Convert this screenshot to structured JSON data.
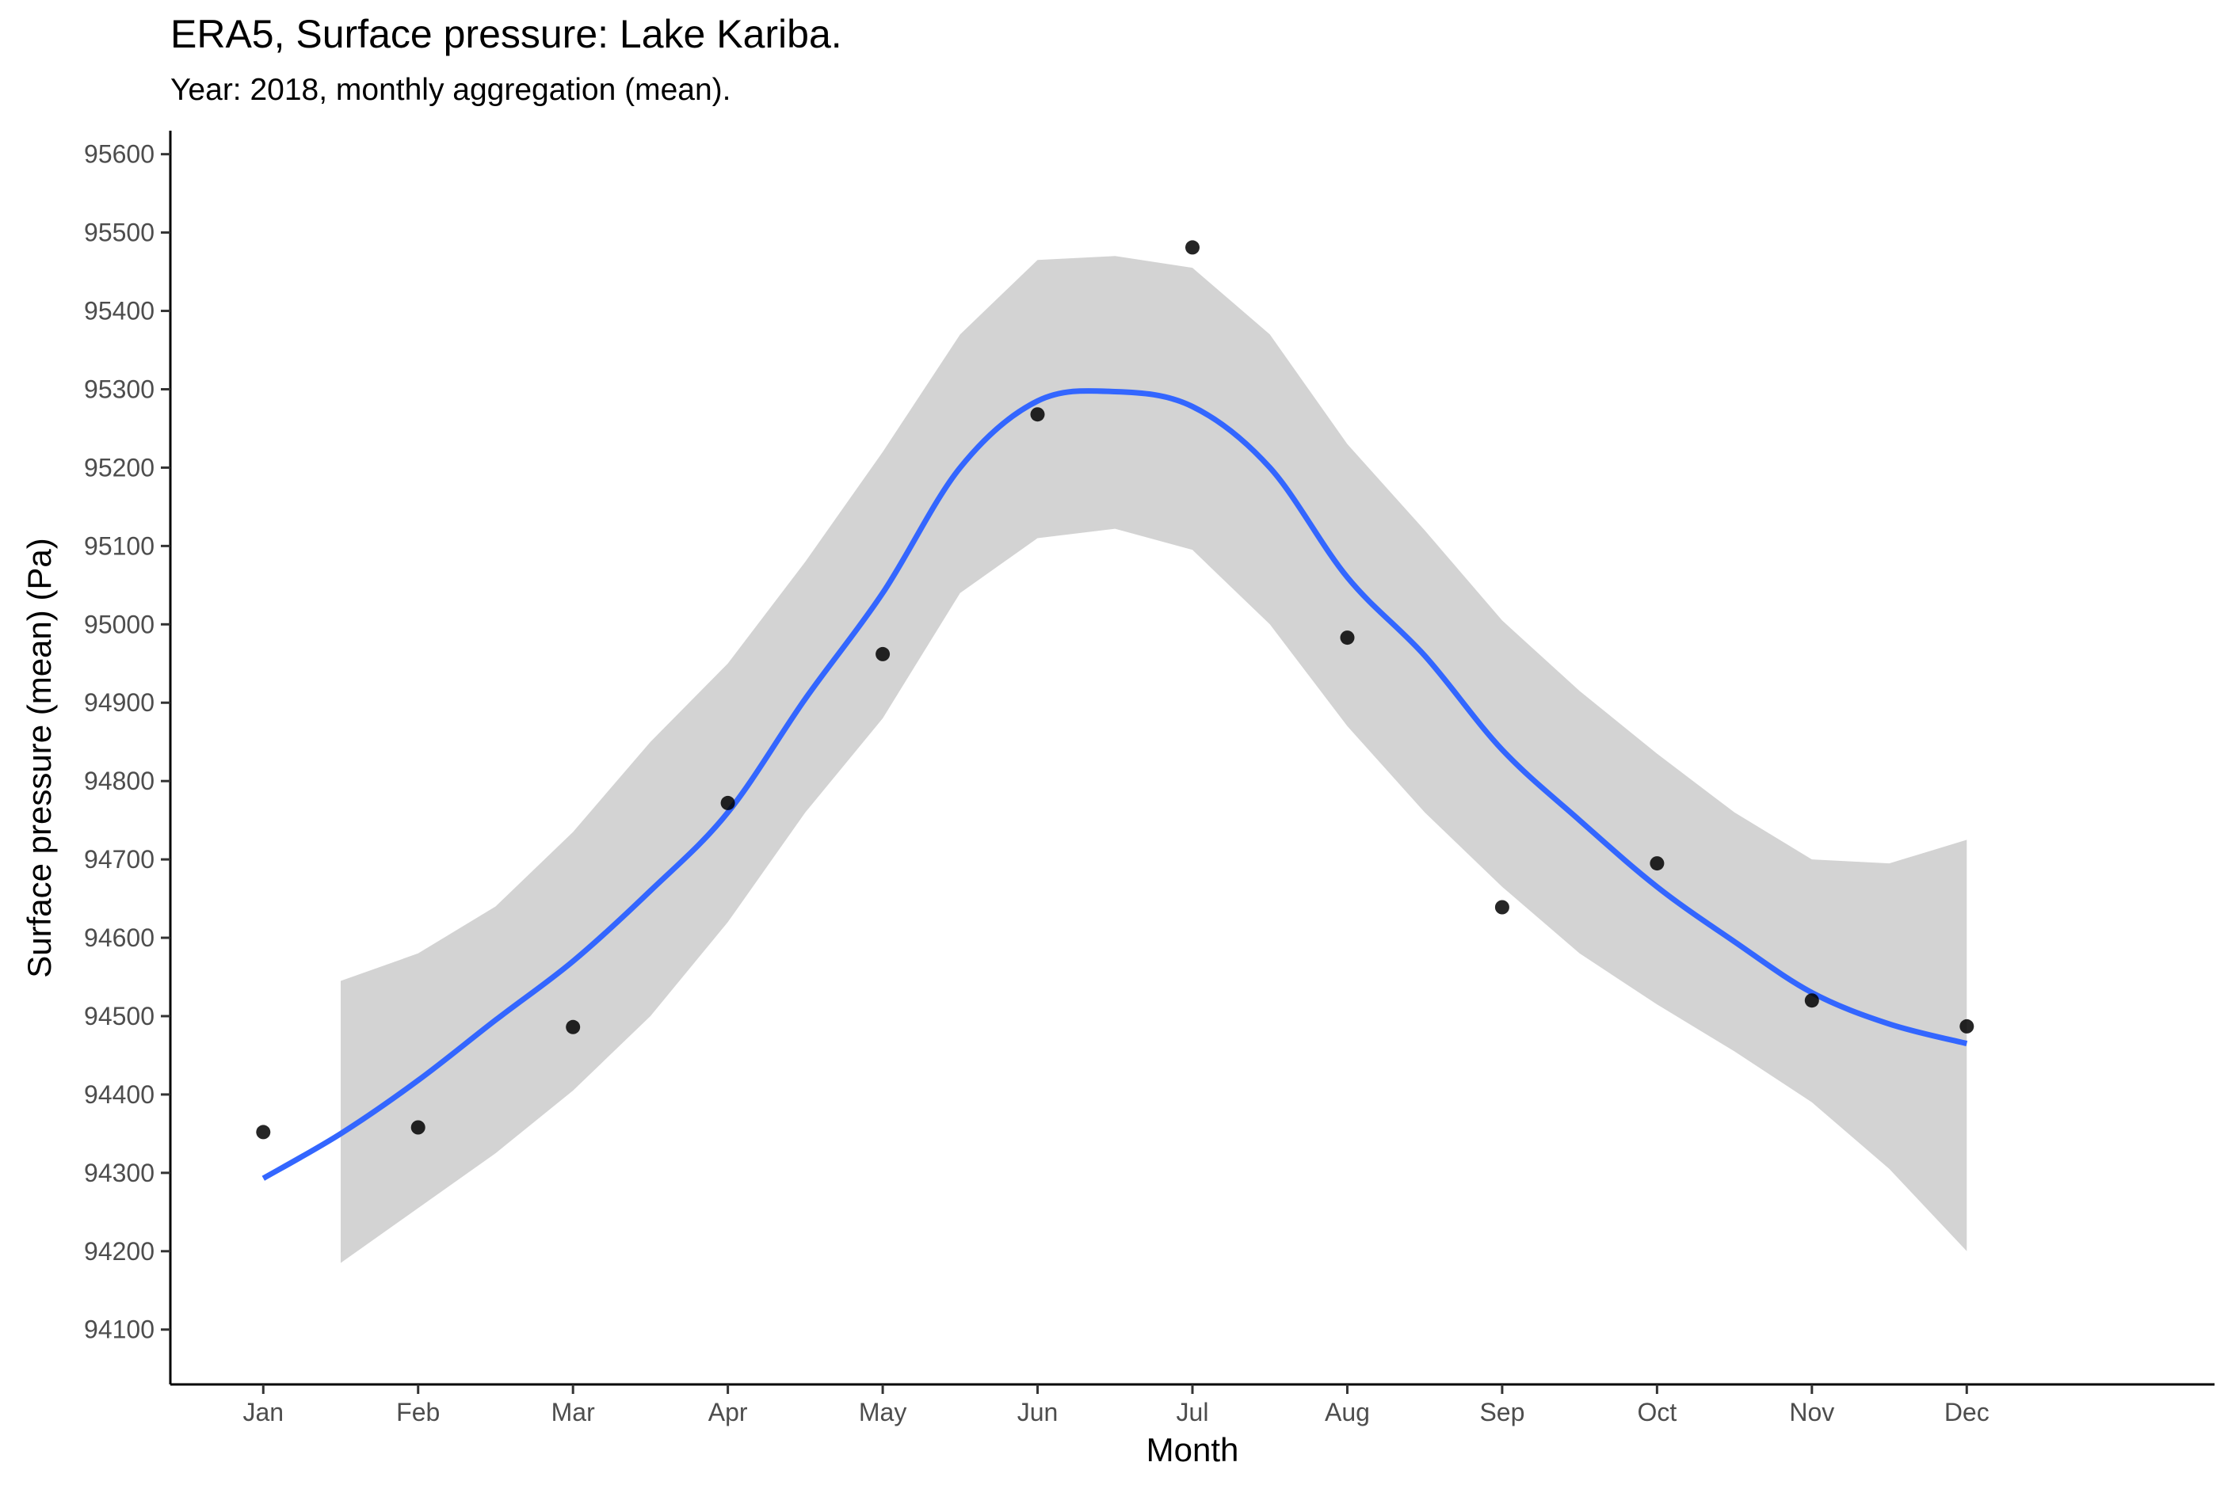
{
  "chart_data": {
    "type": "scatter",
    "title": "ERA5, Surface pressure: Lake Kariba.",
    "subtitle": "Year: 2018, monthly aggregation (mean).",
    "xlabel": "Month",
    "ylabel": "Surface pressure (mean) (Pa)",
    "categories": [
      "Jan",
      "Feb",
      "Mar",
      "Apr",
      "May",
      "Jun",
      "Jul",
      "Aug",
      "Sep",
      "Oct",
      "Nov",
      "Dec"
    ],
    "yticks": [
      94100,
      94200,
      94300,
      94400,
      94500,
      94600,
      94700,
      94800,
      94900,
      95000,
      95100,
      95200,
      95300,
      95400,
      95500,
      95600
    ],
    "ylim": [
      94030,
      95630
    ],
    "xlim": [
      0.4,
      13.6
    ],
    "grid": false,
    "legend": "none",
    "series": [
      {
        "values": [
          94352,
          94358,
          94486,
          94772,
          94962,
          95268,
          95481,
          94983,
          94639,
          94695,
          94520,
          94487
        ],
        "color": "#000000"
      }
    ],
    "smooth": {
      "color": "#3366FF",
      "band_color": "#D3D3D3",
      "x": [
        1.0,
        1.5,
        2.0,
        2.5,
        3.0,
        3.5,
        4.0,
        4.5,
        5.0,
        5.5,
        6.0,
        6.5,
        7.0,
        7.5,
        8.0,
        8.5,
        9.0,
        9.5,
        10.0,
        10.5,
        11.0,
        11.5,
        12.0
      ],
      "fit": [
        94293,
        94350,
        94418,
        94495,
        94570,
        94660,
        94760,
        94905,
        95040,
        95200,
        95285,
        95297,
        95278,
        95200,
        95060,
        94960,
        94840,
        94750,
        94665,
        94595,
        94530,
        94490,
        94465
      ],
      "lower": [
        null,
        94185,
        94255,
        94325,
        94405,
        94500,
        94620,
        94760,
        94880,
        95040,
        95110,
        95122,
        95095,
        95000,
        94870,
        94760,
        94665,
        94580,
        94515,
        94455,
        94390,
        94305,
        94200
      ],
      "upper": [
        null,
        94545,
        94580,
        94640,
        94735,
        94850,
        94950,
        95080,
        95220,
        95370,
        95465,
        95470,
        95455,
        95370,
        95230,
        95120,
        95005,
        94915,
        94835,
        94760,
        94700,
        94695,
        94725
      ]
    }
  }
}
